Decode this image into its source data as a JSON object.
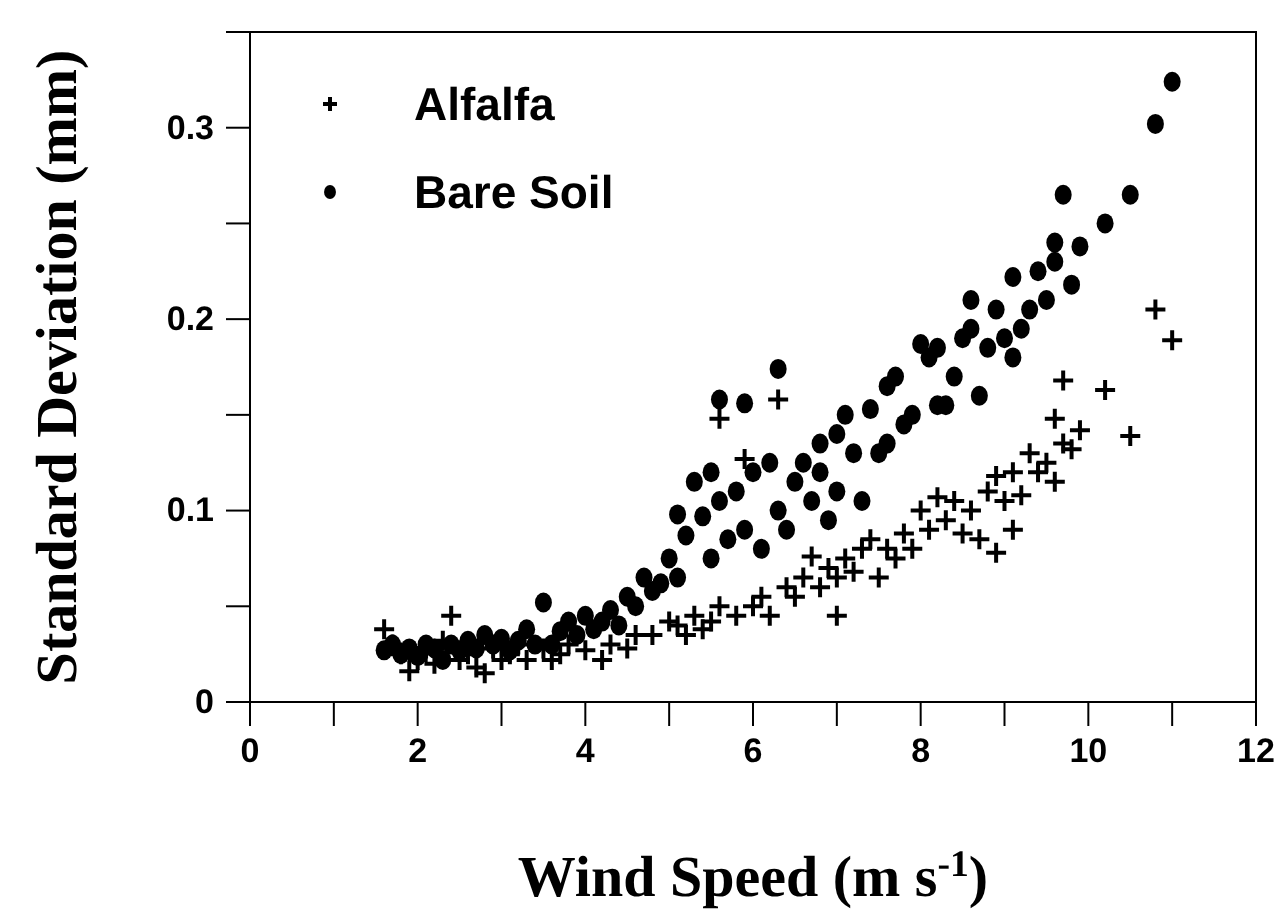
{
  "chart_data": {
    "type": "scatter",
    "xlabel": "Wind Speed (m s$^{-1}$)",
    "ylabel": "Standard Deviation (mm)",
    "xlim": [
      0,
      12
    ],
    "ylim": [
      0,
      0.35
    ],
    "xticks": [
      0,
      {
        "value": 1,
        "label": null
      },
      2,
      {
        "value": 3,
        "label": null
      },
      4,
      {
        "value": 5,
        "label": null
      },
      6,
      {
        "value": 7,
        "label": null
      },
      8,
      {
        "value": 9,
        "label": null
      },
      10,
      {
        "value": 11,
        "label": null
      },
      12
    ],
    "yticks": [
      {
        "value": 0,
        "label": "0"
      },
      {
        "value": 0.05,
        "label": null
      },
      0.1,
      {
        "value": 0.15,
        "label": null
      },
      0.2,
      {
        "value": 0.25,
        "label": null
      },
      0.3
    ],
    "grid": false,
    "legend": "top left",
    "series": [
      {
        "name": "Alfalfa",
        "color": "#000000",
        "marker": "cross",
        "x": [
          1.6,
          1.7,
          1.8,
          1.9,
          2.0,
          2.1,
          2.2,
          2.3,
          2.4,
          2.5,
          2.6,
          2.7,
          2.8,
          2.9,
          3.0,
          3.1,
          3.2,
          3.3,
          3.5,
          3.6,
          3.7,
          3.8,
          4.0,
          4.2,
          4.3,
          4.5,
          4.6,
          4.8,
          5.0,
          5.1,
          5.2,
          5.3,
          5.4,
          5.5,
          5.6,
          5.6,
          5.8,
          5.9,
          6.0,
          6.1,
          6.2,
          6.3,
          6.4,
          6.5,
          6.6,
          6.7,
          6.8,
          6.9,
          7.0,
          7.0,
          7.1,
          7.2,
          7.3,
          7.4,
          7.5,
          7.6,
          7.7,
          7.8,
          7.9,
          8.0,
          8.1,
          8.2,
          8.3,
          8.4,
          8.5,
          8.6,
          8.7,
          8.8,
          8.9,
          8.9,
          9.0,
          9.1,
          9.1,
          9.2,
          9.3,
          9.4,
          9.5,
          9.6,
          9.6,
          9.7,
          9.7,
          9.8,
          9.9,
          10.2,
          10.5,
          10.8,
          11.0
        ],
        "values": [
          0.038,
          0.03,
          0.025,
          0.016,
          0.022,
          0.028,
          0.02,
          0.032,
          0.045,
          0.022,
          0.025,
          0.018,
          0.015,
          0.028,
          0.022,
          0.025,
          0.03,
          0.022,
          0.028,
          0.022,
          0.025,
          0.03,
          0.027,
          0.022,
          0.03,
          0.028,
          0.035,
          0.035,
          0.042,
          0.04,
          0.035,
          0.045,
          0.038,
          0.042,
          0.148,
          0.05,
          0.045,
          0.127,
          0.05,
          0.055,
          0.045,
          0.158,
          0.06,
          0.055,
          0.065,
          0.076,
          0.06,
          0.07,
          0.045,
          0.065,
          0.075,
          0.068,
          0.08,
          0.085,
          0.065,
          0.08,
          0.075,
          0.088,
          0.08,
          0.1,
          0.09,
          0.107,
          0.095,
          0.105,
          0.088,
          0.1,
          0.085,
          0.11,
          0.078,
          0.118,
          0.105,
          0.09,
          0.12,
          0.108,
          0.13,
          0.12,
          0.125,
          0.148,
          0.115,
          0.135,
          0.168,
          0.132,
          0.142,
          0.163,
          0.139,
          0.205,
          0.189
        ]
      },
      {
        "name": "Bare Soil",
        "color": "#000000",
        "marker": "circle",
        "x": [
          1.6,
          1.7,
          1.8,
          1.9,
          2.0,
          2.1,
          2.2,
          2.3,
          2.4,
          2.5,
          2.6,
          2.7,
          2.8,
          2.9,
          3.0,
          3.1,
          3.2,
          3.3,
          3.4,
          3.5,
          3.6,
          3.7,
          3.8,
          3.9,
          4.0,
          4.1,
          4.2,
          4.3,
          4.4,
          4.5,
          4.6,
          4.7,
          4.8,
          4.9,
          5.0,
          5.1,
          5.1,
          5.2,
          5.3,
          5.4,
          5.5,
          5.5,
          5.6,
          5.6,
          5.7,
          5.8,
          5.9,
          5.9,
          6.0,
          6.1,
          6.2,
          6.3,
          6.3,
          6.4,
          6.5,
          6.6,
          6.7,
          6.8,
          6.8,
          6.9,
          7.0,
          7.0,
          7.1,
          7.2,
          7.3,
          7.4,
          7.5,
          7.6,
          7.6,
          7.7,
          7.8,
          7.9,
          8.0,
          8.1,
          8.2,
          8.2,
          8.3,
          8.4,
          8.5,
          8.6,
          8.6,
          8.7,
          8.8,
          8.9,
          9.0,
          9.1,
          9.1,
          9.2,
          9.3,
          9.4,
          9.5,
          9.6,
          9.6,
          9.7,
          9.8,
          9.9,
          10.2,
          10.5,
          10.8,
          11.0
        ],
        "values": [
          0.027,
          0.03,
          0.025,
          0.028,
          0.024,
          0.03,
          0.028,
          0.022,
          0.03,
          0.027,
          0.032,
          0.028,
          0.035,
          0.03,
          0.033,
          0.027,
          0.032,
          0.038,
          0.03,
          0.052,
          0.03,
          0.037,
          0.042,
          0.035,
          0.045,
          0.038,
          0.042,
          0.048,
          0.04,
          0.055,
          0.05,
          0.065,
          0.058,
          0.062,
          0.075,
          0.065,
          0.098,
          0.087,
          0.115,
          0.097,
          0.12,
          0.075,
          0.105,
          0.158,
          0.085,
          0.11,
          0.156,
          0.09,
          0.12,
          0.08,
          0.125,
          0.174,
          0.1,
          0.09,
          0.115,
          0.125,
          0.105,
          0.12,
          0.135,
          0.095,
          0.14,
          0.11,
          0.15,
          0.13,
          0.105,
          0.153,
          0.13,
          0.135,
          0.165,
          0.17,
          0.145,
          0.15,
          0.187,
          0.18,
          0.155,
          0.185,
          0.155,
          0.17,
          0.19,
          0.21,
          0.195,
          0.16,
          0.185,
          0.205,
          0.19,
          0.18,
          0.222,
          0.195,
          0.205,
          0.225,
          0.21,
          0.24,
          0.23,
          0.265,
          0.218,
          0.238,
          0.25,
          0.265,
          0.302,
          0.324
        ]
      }
    ]
  }
}
